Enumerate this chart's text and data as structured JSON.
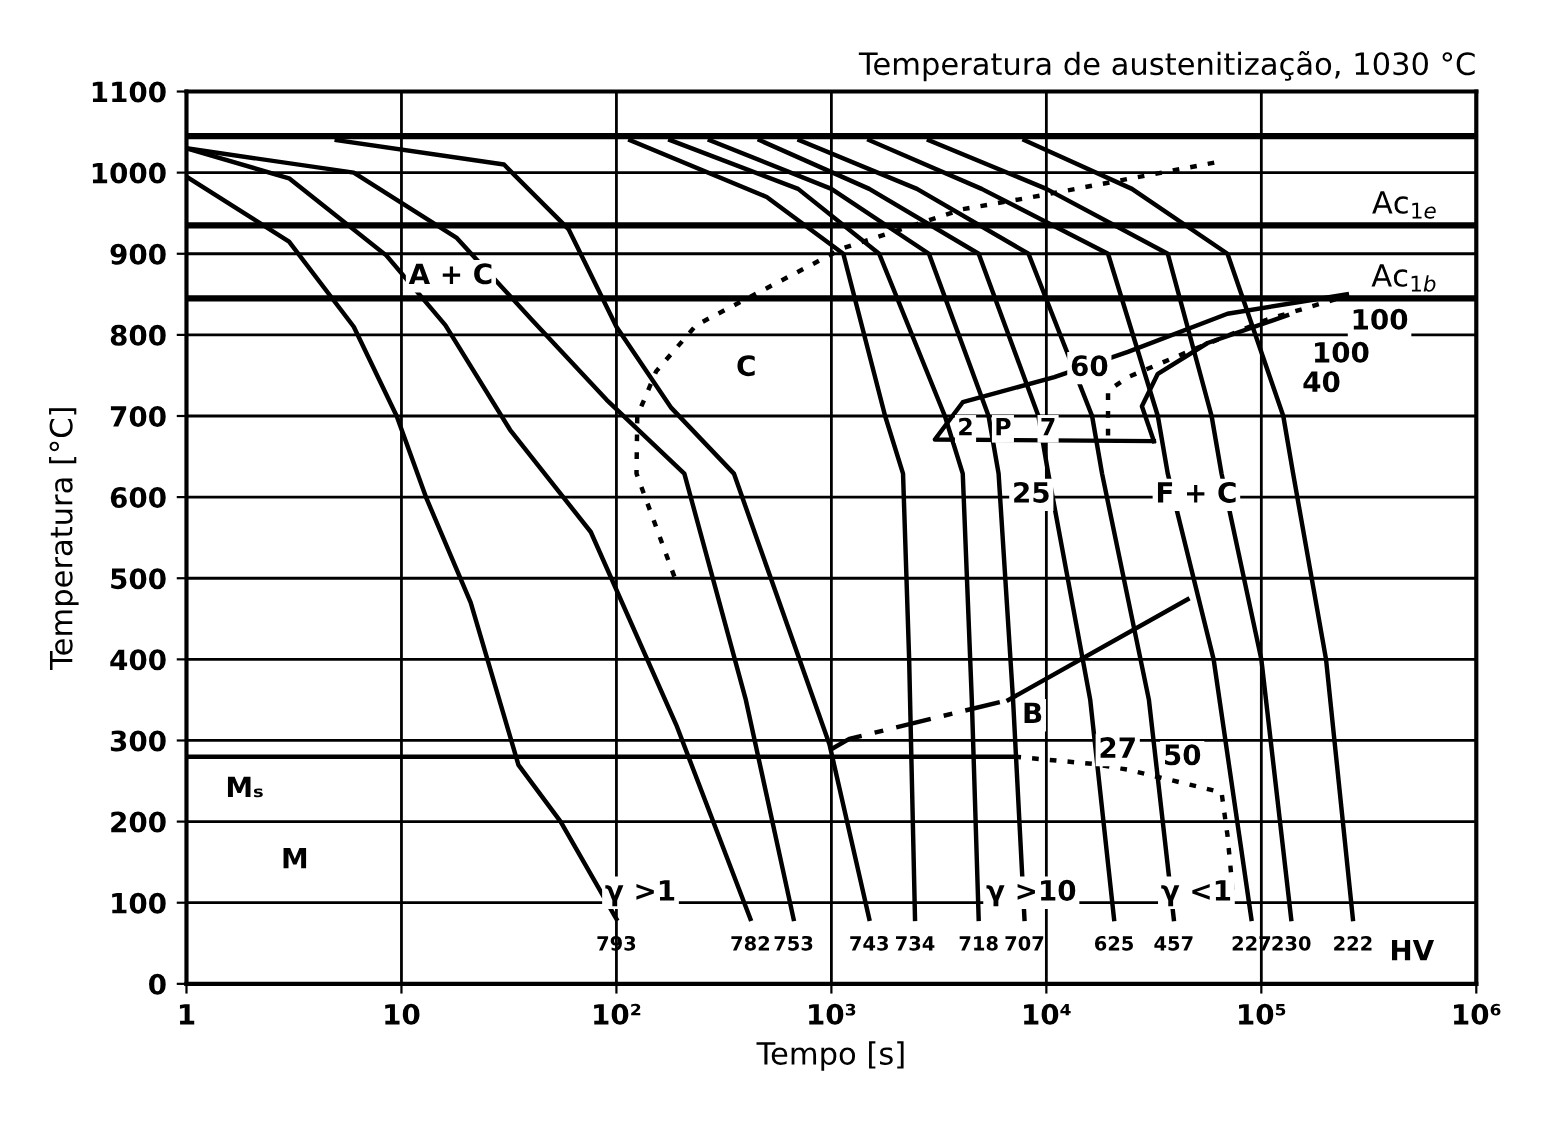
{
  "chart_data": {
    "type": "line",
    "title": "Temperatura de austenitização, 1030 °C",
    "xlabel": "Tempo [s]",
    "ylabel": "Temperatura [°C]",
    "log": "x",
    "xlim": [
      1,
      1000000
    ],
    "xticks": [
      1,
      10,
      {
        "value": 100,
        "label": "10²"
      },
      {
        "value": 1000,
        "label": "10³"
      },
      {
        "value": 10000,
        "label": "10⁴"
      },
      {
        "value": 100000,
        "label": "10⁵"
      },
      {
        "value": 1000000,
        "label": "10⁶"
      }
    ],
    "ylim": [
      0,
      1100
    ],
    "yticks": [
      0,
      100,
      200,
      300,
      400,
      500,
      600,
      700,
      800,
      900,
      1000,
      1100
    ],
    "grid": true,
    "series": [
      {
        "color": "#000000",
        "line_style": "solid",
        "x": [
          1,
          3,
          6,
          9.5,
          13,
          21,
          35,
          55,
          100
        ],
        "values": [
          995,
          915,
          810,
          700,
          600,
          470,
          270,
          200,
          80
        ]
      },
      {
        "color": "#000000",
        "line_style": "solid",
        "x": [
          1,
          3,
          8.5,
          16,
          32,
          76,
          190,
          420
        ],
        "values": [
          1030,
          993,
          898,
          812,
          683,
          557,
          319,
          80
        ]
      },
      {
        "color": "#000000",
        "line_style": "solid",
        "x": [
          1,
          6,
          18,
          40,
          90,
          207,
          400,
          667
        ],
        "values": [
          1030,
          1000,
          920,
          820,
          720,
          629,
          350,
          80
        ]
      },
      {
        "color": "#000000",
        "line_style": "solid",
        "x": [
          5,
          30,
          60,
          100,
          180,
          352,
          980,
          1500
        ],
        "values": [
          1040,
          1010,
          930,
          810,
          710,
          629,
          295,
          80
        ]
      },
      {
        "color": "#000000",
        "line_style": "solid",
        "x": [
          116,
          500,
          1136,
          1778,
          2154,
          2300,
          2449
        ],
        "values": [
          1040,
          970,
          900,
          700,
          629,
          400,
          80
        ]
      },
      {
        "color": "#000000",
        "line_style": "solid",
        "x": [
          178,
          700,
          1668,
          3372,
          4084,
          4500,
          4843
        ],
        "values": [
          1040,
          980,
          900,
          700,
          629,
          350,
          80
        ]
      },
      {
        "color": "#000000",
        "line_style": "solid",
        "x": [
          272,
          1000,
          2843,
          5385,
          5995,
          7000,
          7910
        ],
        "values": [
          1040,
          980,
          900,
          700,
          629,
          350,
          80
        ]
      },
      {
        "color": "#000000",
        "line_style": "solid",
        "x": [
          464,
          1500,
          4843,
          9183,
          10210,
          16000,
          20650
        ],
        "values": [
          1040,
          980,
          900,
          700,
          629,
          350,
          80
        ]
      },
      {
        "color": "#000000",
        "line_style": "solid",
        "x": [
          711,
          2500,
          8258,
          16320,
          18160,
          30000,
          39160
        ],
        "values": [
          1040,
          980,
          900,
          700,
          629,
          350,
          80
        ]
      },
      {
        "color": "#000000",
        "line_style": "solid",
        "x": [
          1500,
          5000,
          19360,
          33000,
          36700,
          60000,
          89900
        ],
        "values": [
          1040,
          980,
          900,
          700,
          629,
          400,
          80
        ]
      },
      {
        "color": "#000000",
        "line_style": "solid",
        "x": [
          2843,
          10000,
          36700,
          58700,
          65300,
          100000,
          137700
        ],
        "values": [
          1040,
          980,
          900,
          700,
          629,
          400,
          80
        ]
      },
      {
        "color": "#000000",
        "line_style": "solid",
        "x": [
          7910,
          25000,
          69600,
          126500,
          140600,
          200000,
          266700
        ],
        "values": [
          1040,
          980,
          900,
          700,
          629,
          400,
          80
        ]
      },
      {
        "color": "#000000",
        "line_style": "dotted",
        "x": [
          186,
          124,
          125,
          153,
          235,
          1136,
          4084,
          8258,
          65300
        ],
        "values": [
          502,
          629,
          700,
          755,
          812,
          907,
          955,
          969,
          1014
        ]
      },
      {
        "color": "#000000",
        "line_style": "solid",
        "x": [
          31620,
          3030,
          4084,
          10890,
          23960,
          69600,
          250000
        ],
        "values": [
          669,
          671,
          717,
          748,
          779,
          826,
          850
        ]
      },
      {
        "color": "#000000",
        "line_style": "solid",
        "x": [
          31620,
          27830,
          33000,
          56230,
          131800
        ],
        "values": [
          669,
          712,
          752,
          790,
          824
        ]
      },
      {
        "color": "#000000",
        "line_style": "dotted",
        "x": [
          19360,
          19360,
          23960,
          45400,
          106600,
          250000
        ],
        "values": [
          676,
          731,
          748,
          779,
          819,
          848
        ]
      },
      {
        "color": "#000000",
        "line_style": "dashed",
        "x": [
          980,
          1211,
          6668
        ],
        "values": [
          288,
          302,
          350
        ]
      },
      {
        "color": "#000000",
        "line_style": "solid",
        "x": [
          6668,
          45400
        ],
        "values": [
          350,
          474
        ]
      },
      {
        "color": "#000000",
        "line_style": "solid",
        "x": [
          1,
          7100
        ],
        "values": [
          280,
          280
        ]
      },
      {
        "color": "#000000",
        "line_style": "dotted",
        "x": [
          7100,
          16680,
          23960,
          65300,
          69600,
          74200
        ],
        "values": [
          280,
          271,
          264,
          236,
          183,
          105
        ]
      }
    ],
    "ref_lines": [
      {
        "axis": "y",
        "value": 1045,
        "color": "#000000"
      },
      {
        "axis": "y",
        "value": 935,
        "label": "Ac$_{1e}$",
        "color": "#000000"
      },
      {
        "axis": "y",
        "value": 845,
        "label": "Ac$_{1b}$",
        "color": "#000000"
      }
    ],
    "annotations": [
      "A + C",
      "C",
      "2",
      "P",
      "7",
      "60",
      "25",
      "F + C",
      "100",
      "100",
      "40",
      "B",
      "27",
      "50",
      "Mₛ",
      "M",
      "γ >1",
      "γ >10",
      "γ <1",
      "HV",
      {
        "text": "793",
        "x": 100,
        "y": 80
      },
      {
        "text": "782",
        "x": 420,
        "y": 80
      },
      {
        "text": "753",
        "x": 667,
        "y": 80
      },
      {
        "text": "743",
        "x": 1500,
        "y": 80
      },
      {
        "text": "734",
        "x": 2449,
        "y": 80
      },
      {
        "text": "718",
        "x": 4843,
        "y": 80
      },
      {
        "text": "707",
        "x": 7910,
        "y": 80
      },
      {
        "text": "625",
        "x": 20650,
        "y": 80
      },
      {
        "text": "457",
        "x": 39160,
        "y": 80
      },
      {
        "text": "227",
        "x": 89900,
        "y": 80
      },
      {
        "text": "230",
        "x": 137700,
        "y": 80
      },
      {
        "text": "222",
        "x": 266700,
        "y": 80
      }
    ]
  }
}
